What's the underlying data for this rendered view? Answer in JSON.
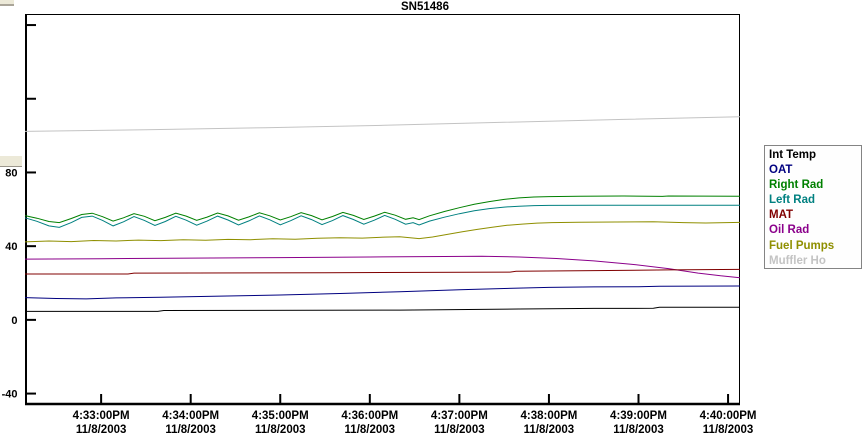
{
  "page": {
    "background": "#ffffff"
  },
  "window_fragments": {
    "color": "#ece9d8"
  },
  "legend": {
    "border_color": "#848484"
  },
  "chart_data": {
    "type": "line",
    "title": "SN51486",
    "axis_color": "#000000",
    "plot_background": "#ffffff",
    "grid": false,
    "legend_position": "right",
    "x_axis": {
      "unit": "seconds since 4:33:00PM",
      "range": [
        -51,
        428
      ],
      "ticks": [
        {
          "t": 0,
          "time": "4:33:00PM",
          "date": "11/8/2003"
        },
        {
          "t": 60,
          "time": "4:34:00PM",
          "date": "11/8/2003"
        },
        {
          "t": 120,
          "time": "4:35:00PM",
          "date": "11/8/2003"
        },
        {
          "t": 180,
          "time": "4:36:00PM",
          "date": "11/8/2003"
        },
        {
          "t": 240,
          "time": "4:37:00PM",
          "date": "11/8/2003"
        },
        {
          "t": 300,
          "time": "4:38:00PM",
          "date": "11/8/2003"
        },
        {
          "t": 360,
          "time": "4:39:00PM",
          "date": "11/8/2003"
        },
        {
          "t": 420,
          "time": "4:40:00PM",
          "date": "11/8/2003"
        }
      ]
    },
    "y_axis": {
      "range": [
        -46.2,
        166
      ],
      "ticks": [
        {
          "v": 160,
          "label": ""
        },
        {
          "v": 120,
          "label": ""
        },
        {
          "v": 80,
          "label": "80"
        },
        {
          "v": 40,
          "label": "40"
        },
        {
          "v": 0,
          "label": "0"
        },
        {
          "v": -40,
          "label": "-40"
        }
      ]
    },
    "series": [
      {
        "name": "Int Temp",
        "color": "#000000",
        "points": [
          [
            -51,
            4.6
          ],
          [
            38,
            4.6
          ],
          [
            42,
            5.1
          ],
          [
            200,
            5.3
          ],
          [
            280,
            5.9
          ],
          [
            330,
            6.2
          ],
          [
            370,
            6.3
          ],
          [
            374,
            6.9
          ],
          [
            428,
            6.9
          ]
        ]
      },
      {
        "name": "OAT",
        "color": "#000080",
        "points": [
          [
            -51,
            12.1
          ],
          [
            -30,
            11.6
          ],
          [
            -10,
            11.4
          ],
          [
            10,
            11.9
          ],
          [
            40,
            12.3
          ],
          [
            80,
            12.9
          ],
          [
            120,
            13.5
          ],
          [
            160,
            14.3
          ],
          [
            200,
            15.3
          ],
          [
            240,
            16.3
          ],
          [
            270,
            17.0
          ],
          [
            300,
            17.6
          ],
          [
            330,
            17.9
          ],
          [
            360,
            18.0
          ],
          [
            374,
            18.3
          ],
          [
            428,
            18.4
          ]
        ]
      },
      {
        "name": "Right Rad",
        "color": "#008000",
        "points": [
          [
            -51,
            56.6
          ],
          [
            -43,
            55.2
          ],
          [
            -35,
            53.4
          ],
          [
            -28,
            52.8
          ],
          [
            -20,
            55.0
          ],
          [
            -13,
            57.2
          ],
          [
            -6,
            57.9
          ],
          [
            1,
            56.0
          ],
          [
            8,
            53.6
          ],
          [
            15,
            55.4
          ],
          [
            22,
            57.7
          ],
          [
            29,
            56.2
          ],
          [
            36,
            53.8
          ],
          [
            43,
            55.6
          ],
          [
            50,
            57.9
          ],
          [
            57,
            56.3
          ],
          [
            64,
            54.0
          ],
          [
            71,
            55.8
          ],
          [
            78,
            58.0
          ],
          [
            85,
            56.4
          ],
          [
            92,
            54.1
          ],
          [
            99,
            55.9
          ],
          [
            106,
            58.1
          ],
          [
            113,
            56.5
          ],
          [
            120,
            54.2
          ],
          [
            127,
            56.0
          ],
          [
            134,
            58.2
          ],
          [
            141,
            56.6
          ],
          [
            148,
            54.3
          ],
          [
            155,
            56.1
          ],
          [
            162,
            58.3
          ],
          [
            169,
            56.7
          ],
          [
            176,
            54.5
          ],
          [
            183,
            56.3
          ],
          [
            190,
            58.4
          ],
          [
            197,
            56.8
          ],
          [
            204,
            54.6
          ],
          [
            209,
            55.4
          ],
          [
            213,
            54.4
          ],
          [
            220,
            56.5
          ],
          [
            230,
            58.8
          ],
          [
            240,
            60.9
          ],
          [
            250,
            62.7
          ],
          [
            260,
            64.2
          ],
          [
            270,
            65.4
          ],
          [
            280,
            66.2
          ],
          [
            290,
            66.7
          ],
          [
            300,
            66.9
          ],
          [
            320,
            67.1
          ],
          [
            350,
            67.2
          ],
          [
            376,
            67.0
          ],
          [
            380,
            67.2
          ],
          [
            428,
            67.1
          ]
        ]
      },
      {
        "name": "Left Rad",
        "color": "#008080",
        "points": [
          [
            -51,
            55.4
          ],
          [
            -43,
            53.5
          ],
          [
            -35,
            51.0
          ],
          [
            -28,
            50.2
          ],
          [
            -20,
            52.8
          ],
          [
            -13,
            55.6
          ],
          [
            -6,
            56.3
          ],
          [
            1,
            54.0
          ],
          [
            8,
            51.0
          ],
          [
            15,
            53.2
          ],
          [
            22,
            56.1
          ],
          [
            29,
            54.0
          ],
          [
            36,
            51.2
          ],
          [
            43,
            53.4
          ],
          [
            50,
            56.2
          ],
          [
            57,
            54.1
          ],
          [
            64,
            51.4
          ],
          [
            71,
            53.6
          ],
          [
            78,
            56.3
          ],
          [
            85,
            54.2
          ],
          [
            92,
            51.5
          ],
          [
            99,
            53.7
          ],
          [
            106,
            56.4
          ],
          [
            113,
            54.3
          ],
          [
            120,
            51.6
          ],
          [
            127,
            53.8
          ],
          [
            134,
            56.5
          ],
          [
            141,
            54.4
          ],
          [
            148,
            51.7
          ],
          [
            155,
            53.9
          ],
          [
            162,
            56.6
          ],
          [
            169,
            54.5
          ],
          [
            176,
            51.9
          ],
          [
            183,
            54.1
          ],
          [
            190,
            56.7
          ],
          [
            197,
            54.6
          ],
          [
            204,
            51.9
          ],
          [
            209,
            52.8
          ],
          [
            213,
            51.5
          ],
          [
            220,
            53.6
          ],
          [
            230,
            55.7
          ],
          [
            240,
            57.6
          ],
          [
            250,
            59.2
          ],
          [
            260,
            60.4
          ],
          [
            270,
            61.2
          ],
          [
            280,
            61.7
          ],
          [
            290,
            62.0
          ],
          [
            300,
            62.1
          ],
          [
            330,
            62.2
          ],
          [
            380,
            62.2
          ],
          [
            428,
            62.2
          ]
        ]
      },
      {
        "name": "MAT",
        "color": "#800000",
        "points": [
          [
            -51,
            24.9
          ],
          [
            18,
            24.9
          ],
          [
            22,
            25.4
          ],
          [
            150,
            25.6
          ],
          [
            274,
            25.9
          ],
          [
            278,
            26.4
          ],
          [
            340,
            26.8
          ],
          [
            380,
            27.1
          ],
          [
            428,
            27.4
          ]
        ]
      },
      {
        "name": "Oil Rad",
        "color": "#8b008b",
        "points": [
          [
            -51,
            33.0
          ],
          [
            0,
            33.2
          ],
          [
            60,
            33.5
          ],
          [
            120,
            33.8
          ],
          [
            180,
            34.1
          ],
          [
            230,
            34.4
          ],
          [
            255,
            34.5
          ],
          [
            280,
            34.1
          ],
          [
            305,
            33.3
          ],
          [
            330,
            32.0
          ],
          [
            355,
            30.2
          ],
          [
            380,
            27.8
          ],
          [
            400,
            25.4
          ],
          [
            415,
            23.9
          ],
          [
            428,
            22.9
          ]
        ]
      },
      {
        "name": "Fuel Pumps",
        "color": "#8f8f00",
        "points": [
          [
            -51,
            42.3
          ],
          [
            -35,
            42.8
          ],
          [
            -20,
            42.5
          ],
          [
            -5,
            43.1
          ],
          [
            10,
            42.8
          ],
          [
            25,
            43.3
          ],
          [
            40,
            43.0
          ],
          [
            55,
            43.5
          ],
          [
            70,
            43.2
          ],
          [
            85,
            43.7
          ],
          [
            100,
            43.5
          ],
          [
            115,
            44.0
          ],
          [
            130,
            43.8
          ],
          [
            145,
            44.3
          ],
          [
            160,
            44.6
          ],
          [
            175,
            44.4
          ],
          [
            190,
            44.9
          ],
          [
            200,
            45.1
          ],
          [
            207,
            44.6
          ],
          [
            213,
            44.1
          ],
          [
            222,
            45.0
          ],
          [
            232,
            46.4
          ],
          [
            242,
            47.8
          ],
          [
            252,
            49.1
          ],
          [
            262,
            50.3
          ],
          [
            272,
            51.3
          ],
          [
            282,
            52.0
          ],
          [
            292,
            52.5
          ],
          [
            302,
            52.8
          ],
          [
            320,
            53.0
          ],
          [
            345,
            53.1
          ],
          [
            370,
            53.2
          ],
          [
            390,
            52.8
          ],
          [
            405,
            52.6
          ],
          [
            428,
            52.9
          ]
        ]
      },
      {
        "name": "Muffler Ho",
        "color": "#c3c3c3",
        "points": [
          [
            -51,
            102.3
          ],
          [
            30,
            103.2
          ],
          [
            110,
            104.3
          ],
          [
            190,
            105.6
          ],
          [
            270,
            107.2
          ],
          [
            350,
            108.8
          ],
          [
            428,
            110.2
          ]
        ]
      }
    ]
  }
}
